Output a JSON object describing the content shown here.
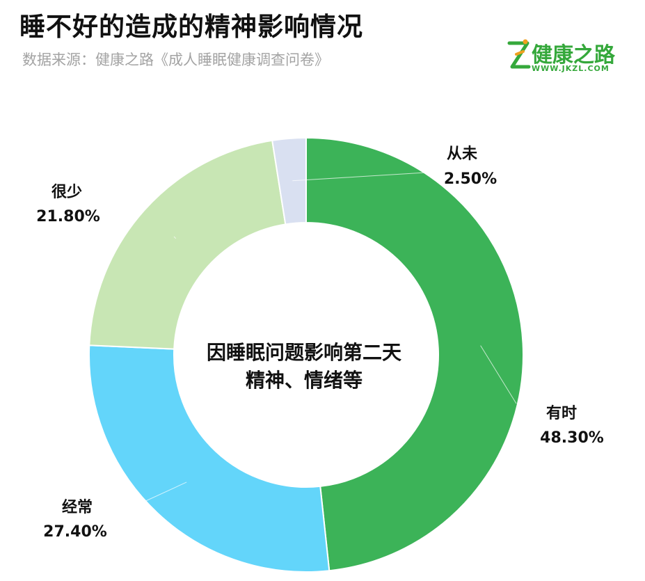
{
  "header": {
    "title": "睡不好的造成的精神影响情况",
    "subtitle": "数据来源：健康之路《成人睡眠健康调查问卷》"
  },
  "logo": {
    "name": "健康之路",
    "url": "WWW.JKZL.COM",
    "icon": "runner-logo-icon"
  },
  "colors": {
    "有时": "#3cb358",
    "经常": "#63d5fa",
    "很少": "#c8e6b4",
    "从未": "#d9e0f1",
    "title": "#111111",
    "subtitle": "#a3a3a3",
    "brand": "#35a83b"
  },
  "chart_data": {
    "type": "donut",
    "center_text": [
      "因睡眠问题影响第二天",
      "精神、情绪等"
    ],
    "slices": [
      {
        "name": "有时",
        "value": 48.3,
        "label": "48.30%"
      },
      {
        "name": "经常",
        "value": 27.4,
        "label": "27.40%"
      },
      {
        "name": "很少",
        "value": 21.8,
        "label": "21.80%"
      },
      {
        "name": "从未",
        "value": 2.5,
        "label": "2.50%"
      }
    ],
    "start": "12 o'clock",
    "direction": "clockwise"
  }
}
